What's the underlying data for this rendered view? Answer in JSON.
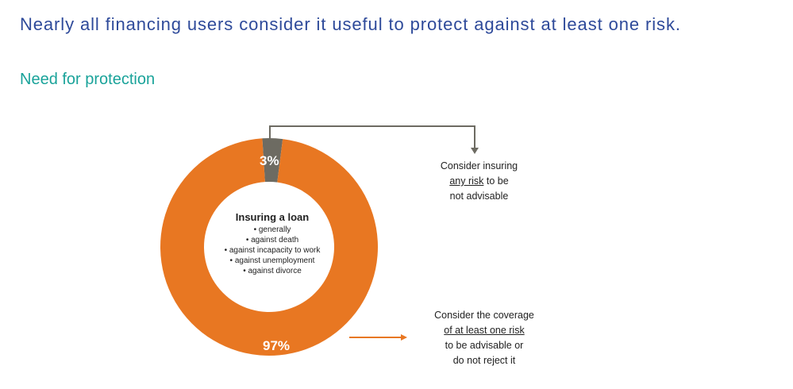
{
  "headline": "Nearly all financing users consider it useful to protect against at least one risk.",
  "subhead": "Need for protection",
  "colors": {
    "headline": "#2e4a9a",
    "subhead": "#1aa39a",
    "not_advisable": "#6d6b62",
    "advisable": "#e87722"
  },
  "chart_data": {
    "type": "pie",
    "variant": "donut",
    "center_title": "Insuring a loan",
    "center_items": [
      "generally",
      "against death",
      "against incapacity to work",
      "against unemployment",
      "against divorce"
    ],
    "slices": [
      {
        "value": 3,
        "label": "3%",
        "color": "#6d6b62",
        "annotation": {
          "line1": "Consider insuring",
          "underlined": "any risk",
          "rest": " to be",
          "line3": "not advisable"
        }
      },
      {
        "value": 97,
        "label": "97%",
        "color": "#e87722",
        "annotation": {
          "line1": "Consider the coverage",
          "underlined": "of at least one risk ",
          "line3": "to be advisable or",
          "line4": "do not reject it"
        }
      }
    ]
  }
}
